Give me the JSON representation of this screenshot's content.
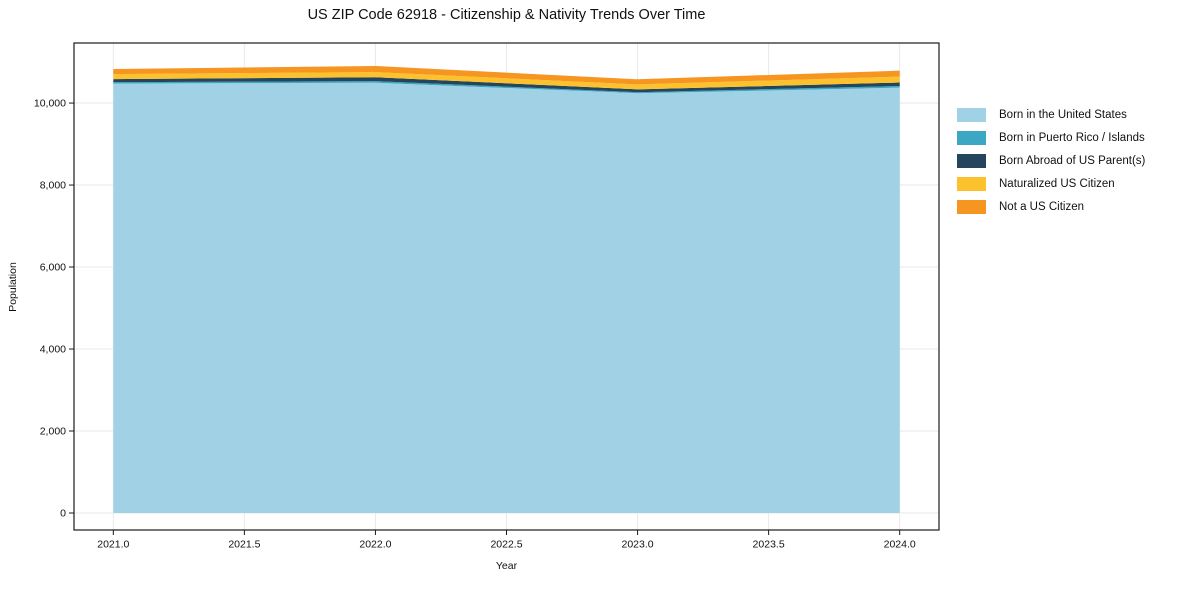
{
  "chart_data": {
    "type": "area",
    "stacked": true,
    "title": "US ZIP Code 62918 - Citizenship & Nativity Trends Over Time",
    "xlabel": "Year",
    "ylabel": "Population",
    "x": [
      2021,
      2022,
      2023,
      2024
    ],
    "series": [
      {
        "name": "Born in the United States",
        "color": "#a0d1e5",
        "values": [
          10475,
          10495,
          10240,
          10375
        ]
      },
      {
        "name": "Born in Puerto Rico / Islands",
        "color": "#3ba7c2",
        "values": [
          35,
          40,
          25,
          40
        ]
      },
      {
        "name": "Born Abroad of US Parent(s)",
        "color": "#24455c",
        "values": [
          75,
          95,
          70,
          85
        ]
      },
      {
        "name": "Naturalized US Citizen",
        "color": "#fcc22d",
        "values": [
          120,
          125,
          120,
          145
        ]
      },
      {
        "name": "Not a US Citizen",
        "color": "#f6951f",
        "values": [
          125,
          150,
          125,
          145
        ]
      }
    ],
    "xlim": [
      2020.85,
      2024.15
    ],
    "ylim": [
      -415,
      11465
    ],
    "xticks": {
      "values": [
        2021.0,
        2021.5,
        2022.0,
        2022.5,
        2023.0,
        2023.5,
        2024.0
      ],
      "labels": [
        "2021.0",
        "2021.5",
        "2022.0",
        "2022.5",
        "2023.0",
        "2023.5",
        "2024.0"
      ]
    },
    "yticks": {
      "values": [
        0,
        2000,
        4000,
        6000,
        8000,
        10000
      ],
      "labels": [
        "0",
        "2,000",
        "4,000",
        "6,000",
        "8,000",
        "10,000"
      ]
    },
    "grid": true,
    "grid_color": "#e9e9e9",
    "spine_color": "#1a1a1a",
    "text_color": "#111111",
    "legend_position": "outside-right"
  }
}
